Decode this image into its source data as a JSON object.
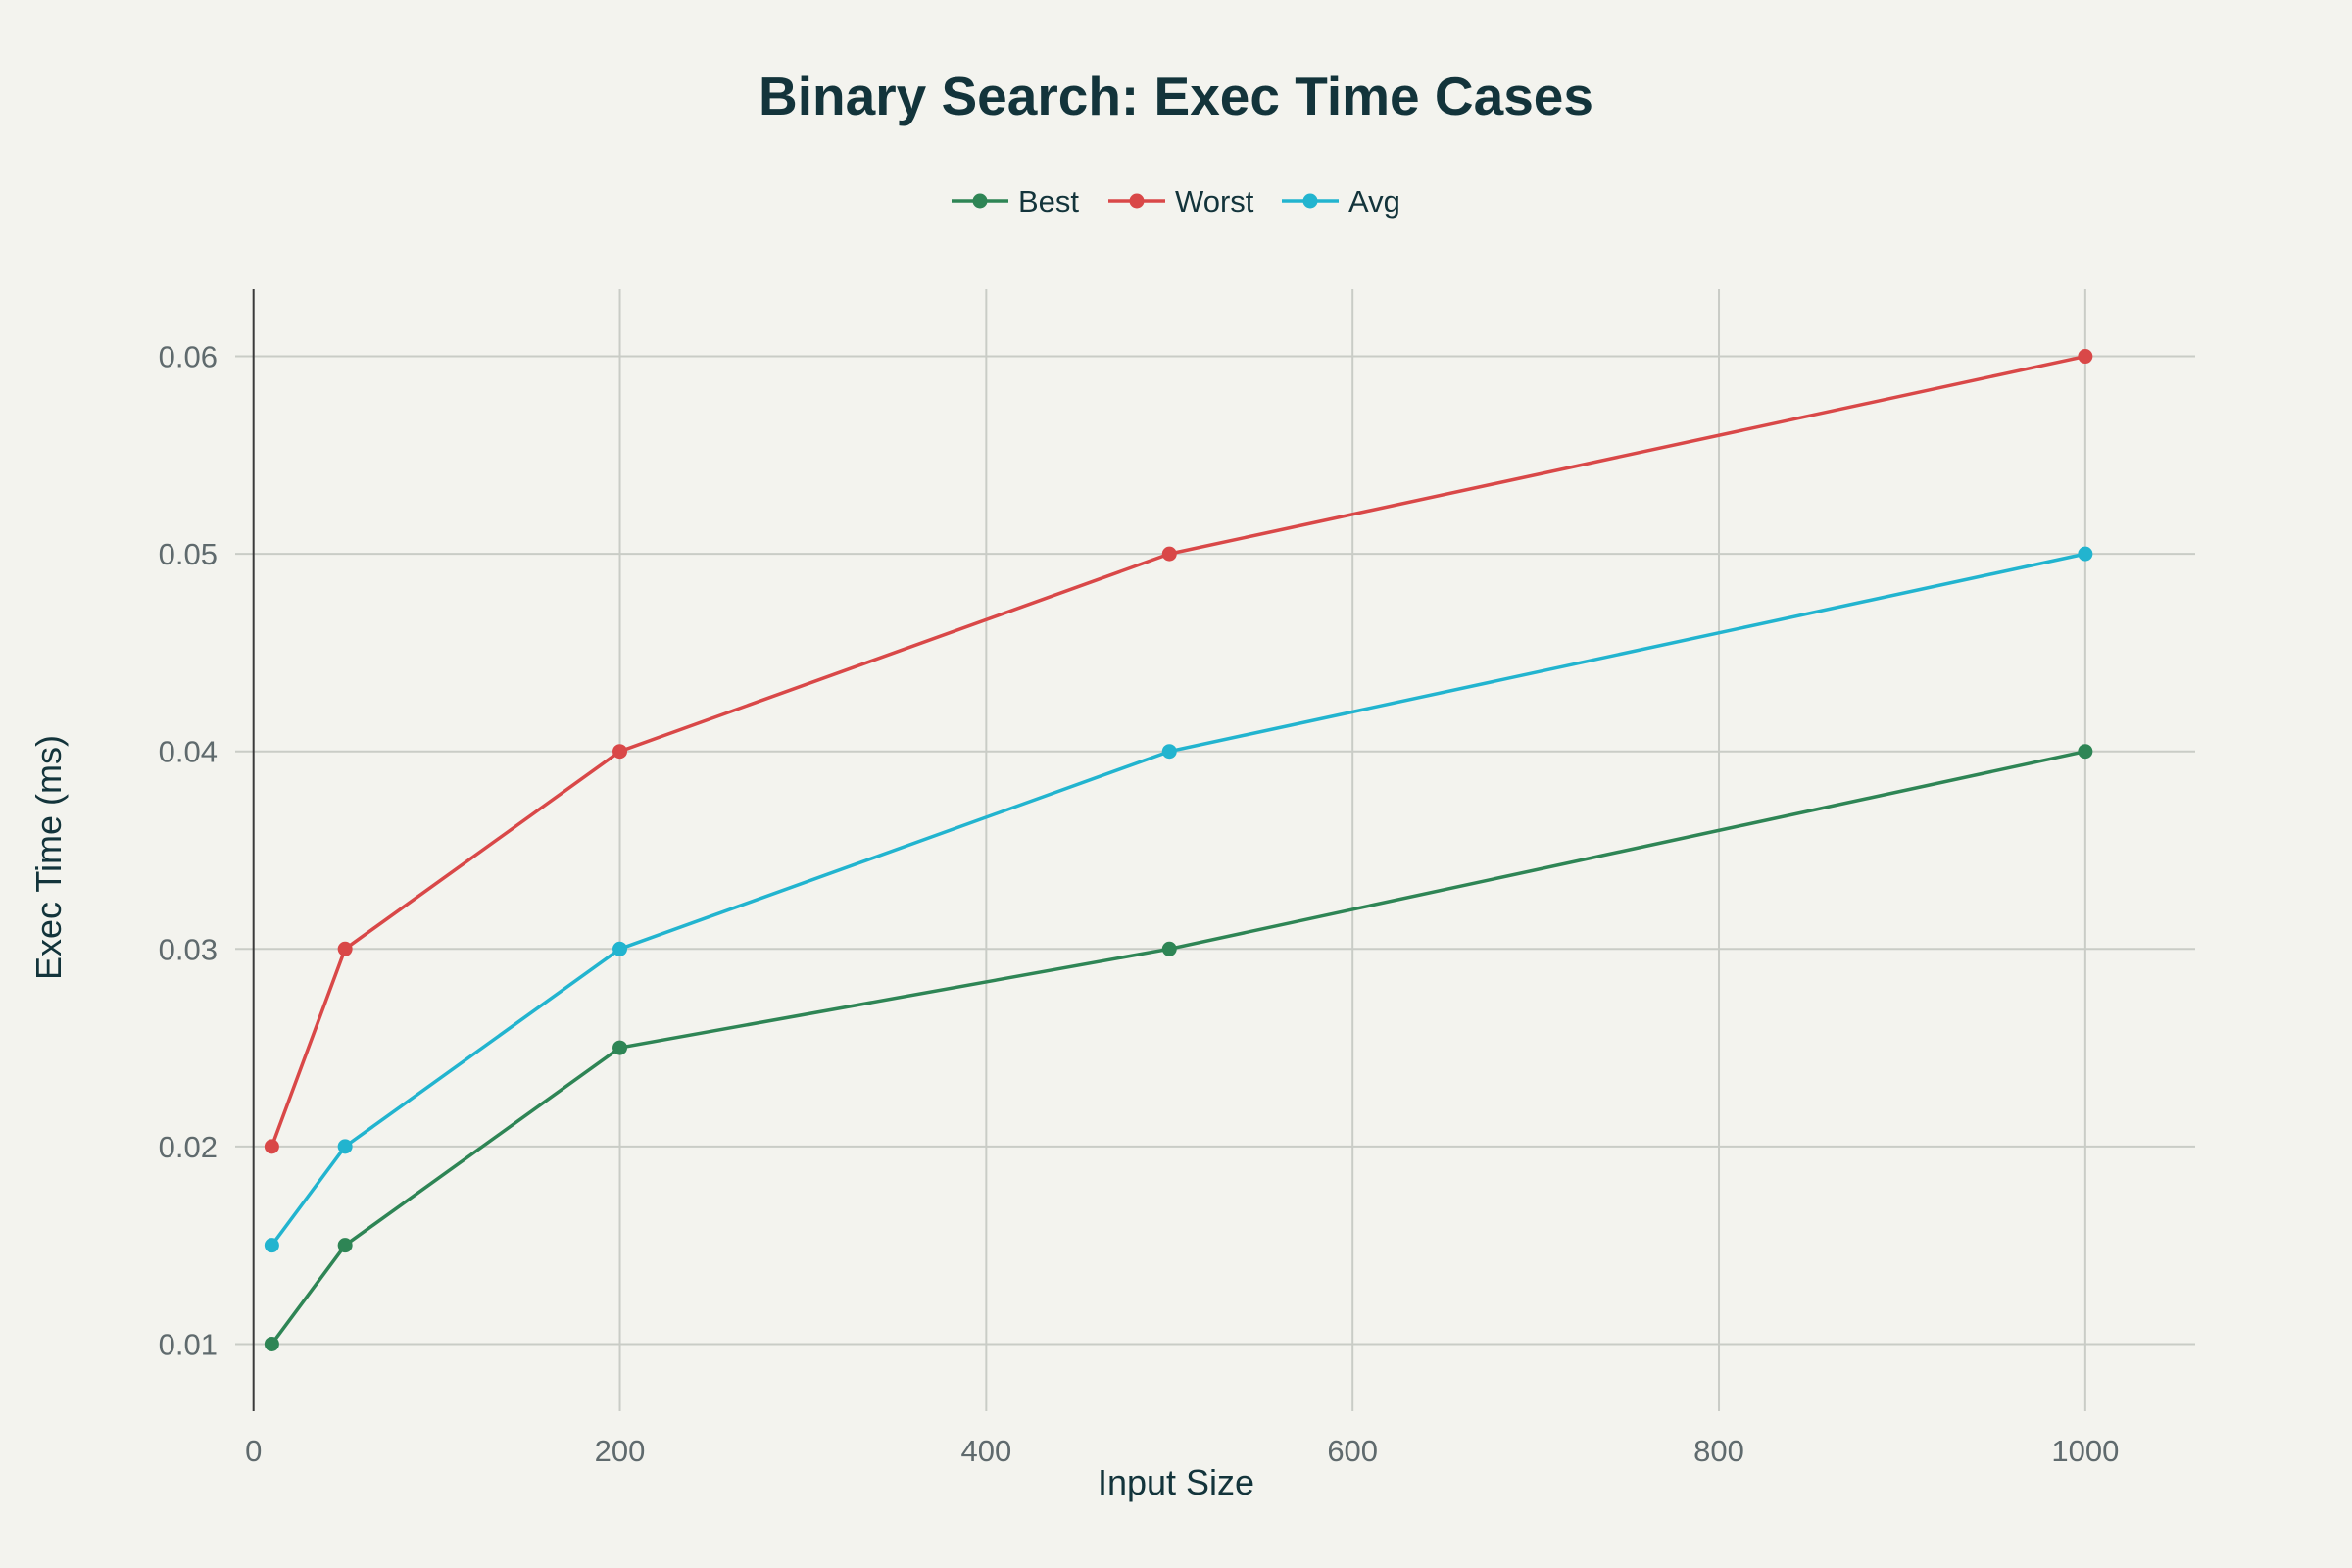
{
  "chart_data": {
    "type": "line",
    "title": "Binary Search: Exec Time Cases",
    "xlabel": "Input Size",
    "ylabel": "Exec Time (ms)",
    "x": [
      10,
      50,
      200,
      500,
      1000
    ],
    "xlim": [
      -10,
      1060
    ],
    "ylim": [
      0.0066,
      0.0634
    ],
    "xticks": [
      0,
      200,
      400,
      600,
      800,
      1000
    ],
    "yticks": [
      0.01,
      0.02,
      0.03,
      0.04,
      0.05,
      0.06
    ],
    "xtick_labels": [
      "0",
      "200",
      "400",
      "600",
      "800",
      "1000"
    ],
    "ytick_labels": [
      "0.01",
      "0.02",
      "0.03",
      "0.04",
      "0.05",
      "0.06"
    ],
    "grid": true,
    "legend_position": "top-center",
    "series": [
      {
        "name": "Best",
        "color": "#2e8555",
        "values": [
          0.01,
          0.015,
          0.025,
          0.03,
          0.04
        ]
      },
      {
        "name": "Worst",
        "color": "#d94848",
        "values": [
          0.02,
          0.03,
          0.04,
          0.05,
          0.06
        ]
      },
      {
        "name": "Avg",
        "color": "#22b4cf",
        "values": [
          0.015,
          0.02,
          0.03,
          0.04,
          0.05
        ]
      }
    ]
  }
}
